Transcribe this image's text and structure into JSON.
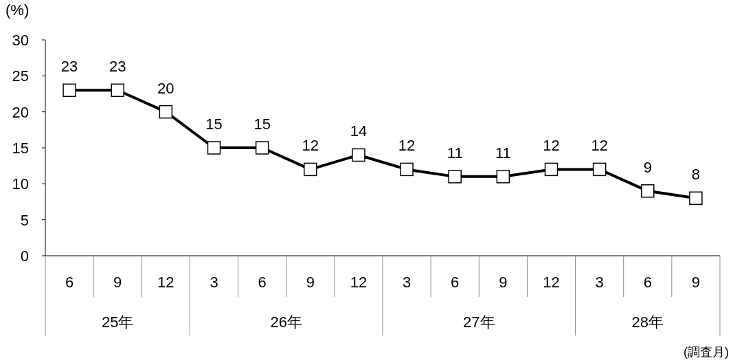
{
  "chart_data": {
    "type": "line",
    "ylabel": "(%)",
    "categories": [
      "6",
      "9",
      "12",
      "3",
      "6",
      "9",
      "12",
      "3",
      "6",
      "9",
      "12",
      "3",
      "6",
      "9"
    ],
    "series": [
      {
        "color": "#000000",
        "values": [
          23,
          23,
          20,
          15,
          15,
          12,
          14,
          12,
          11,
          11,
          12,
          12,
          9,
          8
        ]
      }
    ],
    "ylim": [
      0,
      30
    ],
    "yticks": [
      0,
      5,
      10,
      15,
      20,
      25,
      30
    ],
    "data_labels": true,
    "marker": "square",
    "line_style": "solid",
    "grid": false,
    "annotations": [
      "25年",
      "26年",
      "27年",
      "28年",
      "(調査月)"
    ]
  }
}
